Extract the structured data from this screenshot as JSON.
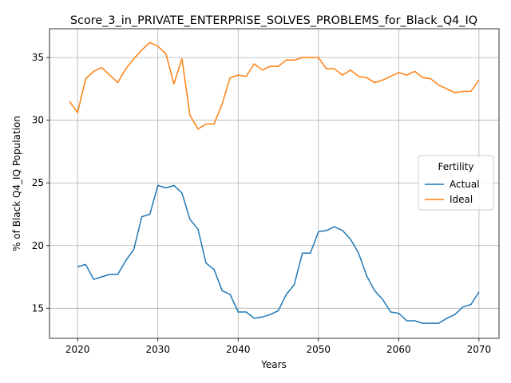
{
  "chart_data": {
    "type": "line",
    "title": "Score_3_in_PRIVATE_ENTERPRISE_SOLVES_PROBLEMS_for_Black_Q4_IQ",
    "xlabel": "Years",
    "ylabel": "% of Black Q4_IQ Population",
    "xlim": [
      2016.5,
      2072.5
    ],
    "ylim": [
      12.6,
      37.3
    ],
    "xticks": [
      2020,
      2030,
      2040,
      2050,
      2060,
      2070
    ],
    "yticks": [
      15,
      20,
      25,
      30,
      35
    ],
    "grid": true,
    "legend": {
      "title": "Fertility",
      "placement": "center-right"
    },
    "series": [
      {
        "name": "Actual",
        "color": "#1f77b4",
        "x": [
          2020,
          2021,
          2022,
          2023,
          2024,
          2025,
          2026,
          2027,
          2028,
          2029,
          2030,
          2031,
          2032,
          2033,
          2034,
          2035,
          2036,
          2037,
          2038,
          2039,
          2040,
          2041,
          2042,
          2043,
          2044,
          2045,
          2046,
          2047,
          2048,
          2049,
          2050,
          2051,
          2052,
          2053,
          2054,
          2055,
          2056,
          2057,
          2058,
          2059,
          2060,
          2061,
          2062,
          2063,
          2064,
          2065,
          2066,
          2067,
          2068,
          2069,
          2070
        ],
        "values": [
          18.3,
          18.5,
          17.3,
          17.5,
          17.7,
          17.7,
          18.8,
          19.7,
          22.3,
          22.5,
          24.8,
          24.6,
          24.8,
          24.2,
          22.1,
          21.3,
          18.6,
          18.1,
          16.4,
          16.1,
          14.7,
          14.7,
          14.2,
          14.3,
          14.5,
          14.8,
          16.1,
          16.9,
          19.4,
          19.4,
          21.1,
          21.2,
          21.5,
          21.2,
          20.5,
          19.4,
          17.6,
          16.4,
          15.7,
          14.7,
          14.6,
          14.0,
          14.0,
          13.8,
          13.8,
          13.8,
          14.2,
          14.5,
          15.1,
          15.3,
          16.3
        ]
      },
      {
        "name": "Ideal",
        "color": "#ff7f0e",
        "x": [
          2019,
          2020,
          2021,
          2022,
          2023,
          2024,
          2025,
          2026,
          2027,
          2028,
          2029,
          2030,
          2031,
          2032,
          2033,
          2034,
          2035,
          2036,
          2037,
          2038,
          2039,
          2040,
          2041,
          2042,
          2043,
          2044,
          2045,
          2046,
          2047,
          2048,
          2049,
          2050,
          2051,
          2052,
          2053,
          2054,
          2055,
          2056,
          2057,
          2058,
          2059,
          2060,
          2061,
          2062,
          2063,
          2064,
          2065,
          2066,
          2067,
          2068,
          2069,
          2070
        ],
        "values": [
          31.5,
          30.6,
          33.3,
          33.9,
          34.2,
          33.6,
          33.0,
          34.1,
          34.9,
          35.6,
          36.2,
          35.9,
          35.3,
          32.9,
          34.9,
          30.4,
          29.3,
          29.7,
          29.7,
          31.3,
          33.4,
          33.6,
          33.5,
          34.5,
          34.0,
          34.3,
          34.3,
          34.8,
          34.8,
          35.0,
          35.0,
          35.0,
          34.1,
          34.1,
          33.6,
          34.0,
          33.5,
          33.4,
          33.0,
          33.2,
          33.5,
          33.8,
          33.6,
          33.9,
          33.4,
          33.3,
          32.8,
          32.5,
          32.2,
          32.3,
          32.3,
          33.2
        ]
      }
    ]
  }
}
